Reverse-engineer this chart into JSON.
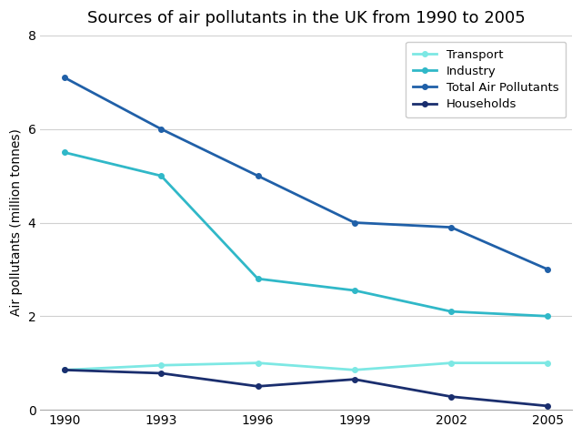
{
  "title": "Sources of air pollutants in the UK from 1990 to 2005",
  "xlabel": "",
  "ylabel": "Air pollutants (million tonnes)",
  "years": [
    1990,
    1993,
    1996,
    1999,
    2002,
    2005
  ],
  "series": {
    "Transport": {
      "values": [
        0.85,
        0.95,
        1.0,
        0.85,
        1.0,
        1.0
      ],
      "color": "#7DE8E4",
      "linewidth": 2.0
    },
    "Industry": {
      "values": [
        5.5,
        5.0,
        2.8,
        2.55,
        2.1,
        2.0
      ],
      "color": "#30B8C8",
      "linewidth": 2.0
    },
    "Total Air Pollutants": {
      "values": [
        7.1,
        6.0,
        5.0,
        4.0,
        3.9,
        3.0
      ],
      "color": "#2060A8",
      "linewidth": 2.0
    },
    "Households": {
      "values": [
        0.85,
        0.78,
        0.5,
        0.65,
        0.28,
        0.08
      ],
      "color": "#1A2E6E",
      "linewidth": 2.0
    }
  },
  "ylim": [
    0,
    8
  ],
  "yticks": [
    0,
    2,
    4,
    6,
    8
  ],
  "legend_order": [
    "Transport",
    "Industry",
    "Total Air Pollutants",
    "Households"
  ],
  "legend_loc": "upper right",
  "background_color": "#ffffff",
  "grid_color": "#d0d0d0",
  "title_fontsize": 13,
  "label_fontsize": 10,
  "tick_fontsize": 10,
  "marker": "o",
  "markersize": 4
}
